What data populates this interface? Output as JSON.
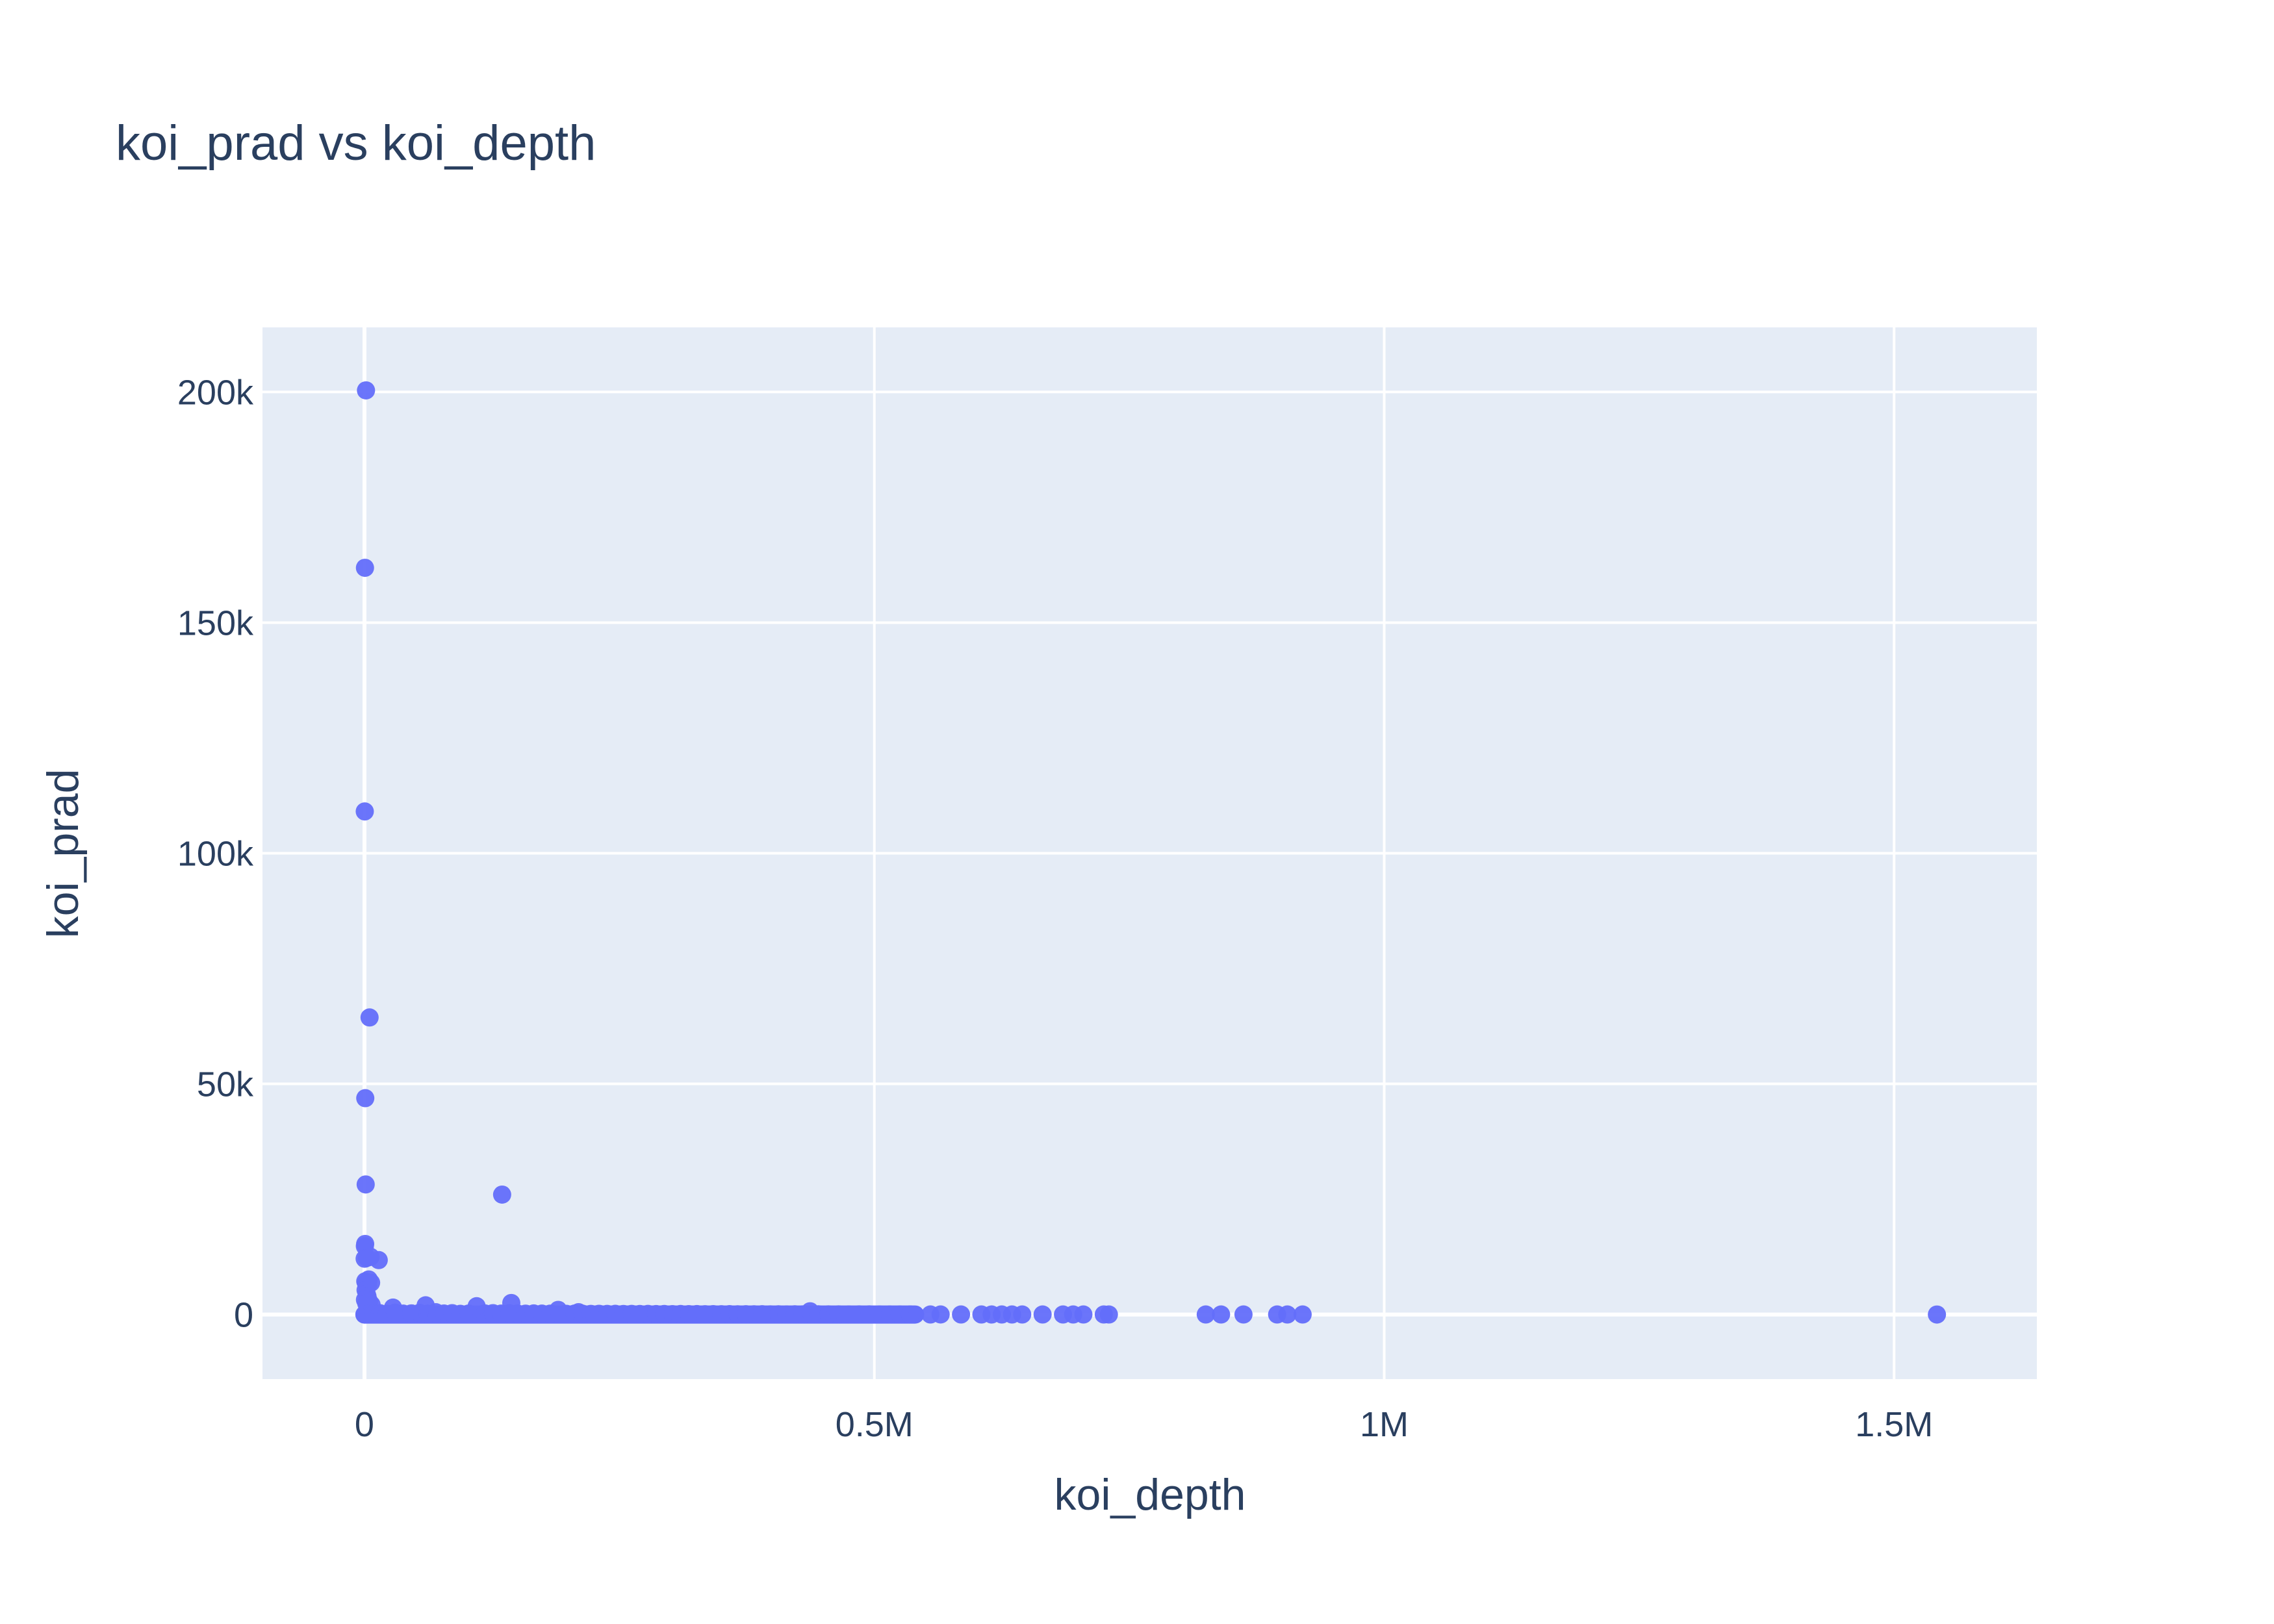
{
  "colors": {
    "plot_background": "#e5ecf6",
    "paper_background": "#ffffff",
    "grid": "#ffffff",
    "marker": "#636efa",
    "text": "#2a3f5f"
  },
  "chart_data": {
    "type": "scatter",
    "title": "koi_prad vs koi_depth",
    "xlabel": "koi_depth",
    "ylabel": "koi_prad",
    "xlim": [
      -100000,
      1640000
    ],
    "ylim": [
      -14000,
      214000
    ],
    "grid": true,
    "legend": "none",
    "x_ticks": [
      {
        "value": 0,
        "label": "0"
      },
      {
        "value": 500000,
        "label": "0.5M"
      },
      {
        "value": 1000000,
        "label": "1M"
      },
      {
        "value": 1500000,
        "label": "1.5M"
      }
    ],
    "y_ticks": [
      {
        "value": 0,
        "label": "0"
      },
      {
        "value": 50000,
        "label": "50k"
      },
      {
        "value": 100000,
        "label": "100k"
      },
      {
        "value": 150000,
        "label": "150k"
      },
      {
        "value": 200000,
        "label": "200k"
      }
    ],
    "series": [
      {
        "marker_color": "#636efa",
        "points": [
          [
            1500,
            200346
          ],
          [
            500,
            161882
          ],
          [
            300,
            109061
          ],
          [
            5000,
            64400
          ],
          [
            800,
            46900
          ],
          [
            1200,
            28200
          ],
          [
            135000,
            26000
          ],
          [
            700,
            15300
          ],
          [
            400,
            14800
          ],
          [
            200,
            12100
          ],
          [
            2500,
            12300
          ],
          [
            6000,
            12500
          ],
          [
            14000,
            11800
          ],
          [
            800,
            7200
          ],
          [
            1600,
            6800
          ],
          [
            3500,
            6400
          ],
          [
            4200,
            7600
          ],
          [
            6500,
            6900
          ],
          [
            1100,
            5300
          ],
          [
            2200,
            4500
          ],
          [
            3000,
            3900
          ],
          [
            500,
            3200
          ],
          [
            4600,
            2800
          ],
          [
            1800,
            2400
          ],
          [
            7000,
            2100
          ],
          [
            60000,
            2000
          ],
          [
            144000,
            2500
          ],
          [
            110000,
            1800
          ],
          [
            28000,
            1500
          ],
          [
            190000,
            1000
          ],
          [
            437000,
            700
          ],
          [
            210000,
            500
          ],
          [
            0,
            0
          ],
          [
            3000,
            100
          ],
          [
            9000,
            200
          ],
          [
            15000,
            300
          ],
          [
            22000,
            150
          ],
          [
            30000,
            400
          ],
          [
            38000,
            200
          ],
          [
            46000,
            250
          ],
          [
            54000,
            350
          ],
          [
            62000,
            180
          ],
          [
            70000,
            500
          ],
          [
            78000,
            220
          ],
          [
            86000,
            300
          ],
          [
            94000,
            150
          ],
          [
            102000,
            200
          ],
          [
            118000,
            250
          ],
          [
            126000,
            300
          ],
          [
            134000,
            200
          ],
          [
            142000,
            280
          ],
          [
            150000,
            220
          ],
          [
            158000,
            190
          ],
          [
            166000,
            240
          ],
          [
            174000,
            200
          ],
          [
            182000,
            180
          ],
          [
            198000,
            150
          ],
          [
            206000,
            200
          ],
          [
            214000,
            170
          ],
          [
            222000,
            140
          ],
          [
            230000,
            160
          ],
          [
            238000,
            130
          ],
          [
            246000,
            150
          ],
          [
            254000,
            120
          ],
          [
            262000,
            140
          ],
          [
            270000,
            110
          ],
          [
            278000,
            130
          ],
          [
            286000,
            100
          ],
          [
            294000,
            120
          ],
          [
            302000,
            90
          ],
          [
            310000,
            110
          ],
          [
            318000,
            80
          ],
          [
            326000,
            100
          ],
          [
            334000,
            70
          ],
          [
            342000,
            90
          ],
          [
            350000,
            60
          ],
          [
            358000,
            80
          ],
          [
            366000,
            50
          ],
          [
            374000,
            70
          ],
          [
            382000,
            40
          ],
          [
            390000,
            60
          ],
          [
            398000,
            30
          ],
          [
            406000,
            50
          ],
          [
            414000,
            20
          ],
          [
            422000,
            40
          ],
          [
            430000,
            30
          ],
          [
            445000,
            40
          ],
          [
            455000,
            30
          ],
          [
            465000,
            25
          ],
          [
            475000,
            20
          ],
          [
            485000,
            30
          ],
          [
            495000,
            25
          ],
          [
            505000,
            20
          ],
          [
            515000,
            15
          ],
          [
            525000,
            20
          ],
          [
            535000,
            15
          ],
          [
            555000,
            10
          ],
          [
            565000,
            12
          ],
          [
            585000,
            10
          ],
          [
            605000,
            8
          ],
          [
            615000,
            10
          ],
          [
            625000,
            9
          ],
          [
            635000,
            8
          ],
          [
            645000,
            7
          ],
          [
            665000,
            9
          ],
          [
            685000,
            8
          ],
          [
            695000,
            7
          ],
          [
            705000,
            6
          ],
          [
            725000,
            7
          ],
          [
            730000,
            5
          ],
          [
            825000,
            6
          ],
          [
            840000,
            5
          ],
          [
            862000,
            5
          ],
          [
            895000,
            4
          ],
          [
            905000,
            4
          ],
          [
            920000,
            4
          ],
          [
            1542000,
            3
          ]
        ]
      }
    ]
  }
}
